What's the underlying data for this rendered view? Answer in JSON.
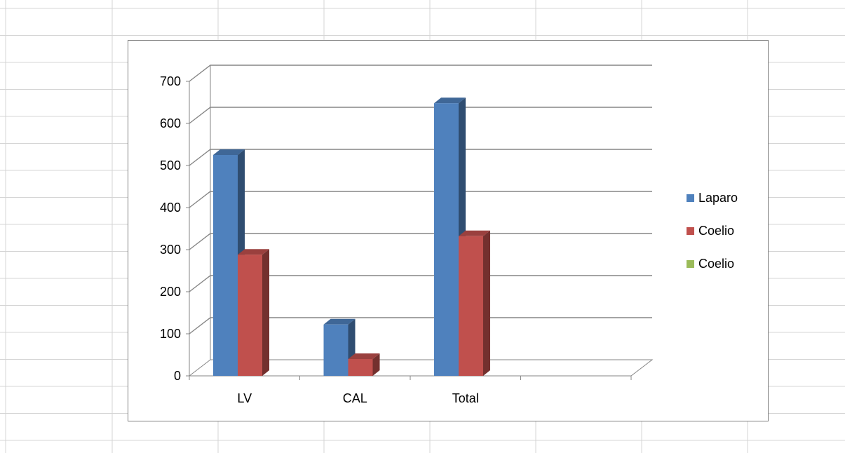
{
  "chart_data": {
    "type": "bar",
    "subtype": "3d-clustered-column",
    "categories": [
      "LV",
      "CAL",
      "Total",
      ""
    ],
    "series": [
      {
        "name": "Laparo",
        "color": "#4F81BD",
        "values": [
          525,
          122,
          648,
          null
        ]
      },
      {
        "name": "Coelio",
        "color": "#C0504D",
        "values": [
          288,
          40,
          332,
          null
        ]
      },
      {
        "name": "Coelio",
        "color": "#9BBB59",
        "values": [
          null,
          null,
          null,
          null
        ]
      }
    ],
    "ylim": [
      0,
      700
    ],
    "yticks": [
      "0",
      "100",
      "200",
      "300",
      "400",
      "500",
      "600",
      "700"
    ],
    "grid": true,
    "legend": "right",
    "title": "",
    "xlabel": "",
    "ylabel": ""
  }
}
